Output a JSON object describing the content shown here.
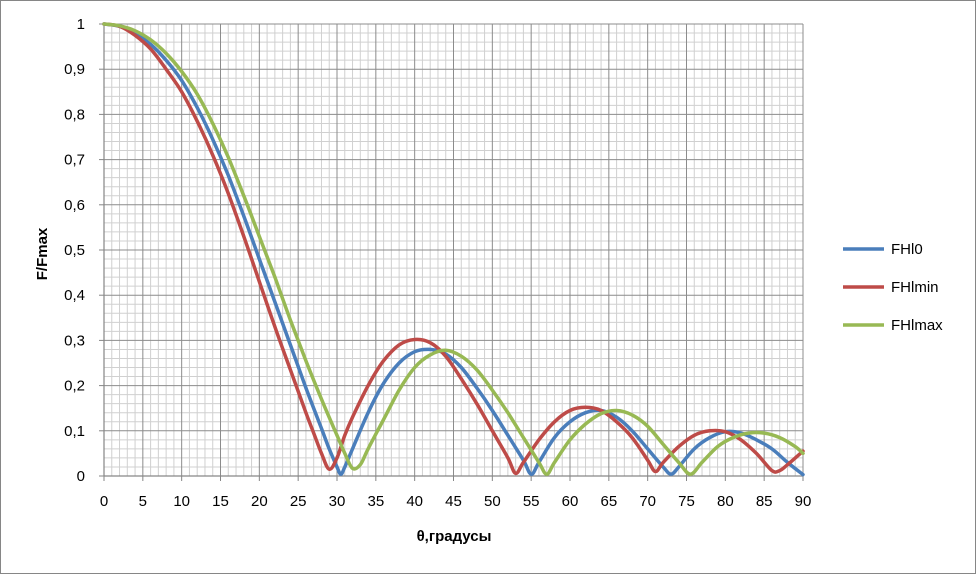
{
  "chart_data": {
    "type": "line",
    "title": "",
    "xlabel": "θ,градусы",
    "ylabel": "F/Fmax",
    "xlim": [
      0,
      90
    ],
    "ylim": [
      0,
      1
    ],
    "x_ticks": [
      0,
      5,
      10,
      15,
      20,
      25,
      30,
      35,
      40,
      45,
      50,
      55,
      60,
      65,
      70,
      75,
      80,
      85,
      90
    ],
    "y_ticks": [
      0,
      0.1,
      0.2,
      0.3,
      0.4,
      0.5,
      0.6,
      0.7,
      0.8,
      0.9,
      1
    ],
    "y_tick_labels": [
      "0",
      "0,1",
      "0,2",
      "0,3",
      "0,4",
      "0,5",
      "0,6",
      "0,7",
      "0,8",
      "0,9",
      "1"
    ],
    "grid": true,
    "legend_position": "right",
    "series": [
      {
        "name": "FHl0",
        "color": "#4a7ebb",
        "points": [
          [
            0,
            1
          ],
          [
            2,
            0.995
          ],
          [
            4,
            0.98
          ],
          [
            6,
            0.955
          ],
          [
            8,
            0.92
          ],
          [
            10,
            0.875
          ],
          [
            12,
            0.815
          ],
          [
            14,
            0.745
          ],
          [
            16,
            0.665
          ],
          [
            18,
            0.575
          ],
          [
            20,
            0.48
          ],
          [
            22,
            0.385
          ],
          [
            24,
            0.29
          ],
          [
            26,
            0.195
          ],
          [
            28,
            0.105
          ],
          [
            29,
            0.06
          ],
          [
            30,
            0.02
          ],
          [
            30.5,
            0.004
          ],
          [
            31,
            0.02
          ],
          [
            32,
            0.06
          ],
          [
            34,
            0.14
          ],
          [
            36,
            0.205
          ],
          [
            38,
            0.25
          ],
          [
            40,
            0.275
          ],
          [
            42,
            0.28
          ],
          [
            44,
            0.27
          ],
          [
            46,
            0.24
          ],
          [
            48,
            0.195
          ],
          [
            50,
            0.145
          ],
          [
            52,
            0.09
          ],
          [
            54,
            0.035
          ],
          [
            55,
            0.004
          ],
          [
            56,
            0.03
          ],
          [
            58,
            0.085
          ],
          [
            60,
            0.12
          ],
          [
            62,
            0.14
          ],
          [
            64,
            0.145
          ],
          [
            66,
            0.13
          ],
          [
            68,
            0.1
          ],
          [
            70,
            0.06
          ],
          [
            72,
            0.02
          ],
          [
            73,
            0.004
          ],
          [
            74,
            0.02
          ],
          [
            76,
            0.06
          ],
          [
            78,
            0.085
          ],
          [
            80,
            0.098
          ],
          [
            82,
            0.095
          ],
          [
            84,
            0.08
          ],
          [
            86,
            0.06
          ],
          [
            88,
            0.03
          ],
          [
            90,
            0.003
          ]
        ]
      },
      {
        "name": "FHlmin",
        "color": "#be4b48",
        "points": [
          [
            0,
            1
          ],
          [
            2,
            0.995
          ],
          [
            4,
            0.975
          ],
          [
            6,
            0.945
          ],
          [
            8,
            0.9
          ],
          [
            10,
            0.85
          ],
          [
            12,
            0.785
          ],
          [
            14,
            0.71
          ],
          [
            16,
            0.625
          ],
          [
            18,
            0.53
          ],
          [
            20,
            0.43
          ],
          [
            22,
            0.33
          ],
          [
            24,
            0.235
          ],
          [
            26,
            0.14
          ],
          [
            27,
            0.095
          ],
          [
            28,
            0.05
          ],
          [
            29,
            0.015
          ],
          [
            30,
            0.04
          ],
          [
            31,
            0.09
          ],
          [
            32,
            0.13
          ],
          [
            34,
            0.2
          ],
          [
            36,
            0.255
          ],
          [
            38,
            0.29
          ],
          [
            40,
            0.302
          ],
          [
            42,
            0.295
          ],
          [
            44,
            0.265
          ],
          [
            46,
            0.215
          ],
          [
            48,
            0.16
          ],
          [
            50,
            0.1
          ],
          [
            52,
            0.04
          ],
          [
            53,
            0.006
          ],
          [
            54,
            0.03
          ],
          [
            56,
            0.08
          ],
          [
            58,
            0.12
          ],
          [
            60,
            0.145
          ],
          [
            62,
            0.152
          ],
          [
            64,
            0.145
          ],
          [
            66,
            0.12
          ],
          [
            68,
            0.085
          ],
          [
            70,
            0.035
          ],
          [
            71,
            0.01
          ],
          [
            72,
            0.03
          ],
          [
            74,
            0.065
          ],
          [
            76,
            0.09
          ],
          [
            78,
            0.1
          ],
          [
            80,
            0.098
          ],
          [
            82,
            0.08
          ],
          [
            84,
            0.05
          ],
          [
            86,
            0.012
          ],
          [
            87,
            0.012
          ],
          [
            88,
            0.025
          ],
          [
            90,
            0.055
          ]
        ]
      },
      {
        "name": "FHlmax",
        "color": "#98b954",
        "points": [
          [
            0,
            1
          ],
          [
            2,
            0.996
          ],
          [
            4,
            0.985
          ],
          [
            6,
            0.965
          ],
          [
            8,
            0.935
          ],
          [
            10,
            0.895
          ],
          [
            12,
            0.845
          ],
          [
            14,
            0.78
          ],
          [
            16,
            0.705
          ],
          [
            18,
            0.62
          ],
          [
            20,
            0.53
          ],
          [
            22,
            0.44
          ],
          [
            24,
            0.345
          ],
          [
            26,
            0.255
          ],
          [
            28,
            0.17
          ],
          [
            30,
            0.09
          ],
          [
            31,
            0.05
          ],
          [
            32,
            0.017
          ],
          [
            33,
            0.025
          ],
          [
            34,
            0.06
          ],
          [
            36,
            0.125
          ],
          [
            38,
            0.19
          ],
          [
            40,
            0.24
          ],
          [
            42,
            0.268
          ],
          [
            44,
            0.278
          ],
          [
            46,
            0.265
          ],
          [
            48,
            0.235
          ],
          [
            50,
            0.19
          ],
          [
            52,
            0.14
          ],
          [
            54,
            0.085
          ],
          [
            56,
            0.03
          ],
          [
            57,
            0.004
          ],
          [
            58,
            0.03
          ],
          [
            60,
            0.08
          ],
          [
            62,
            0.115
          ],
          [
            64,
            0.138
          ],
          [
            66,
            0.145
          ],
          [
            68,
            0.135
          ],
          [
            70,
            0.11
          ],
          [
            72,
            0.07
          ],
          [
            74,
            0.03
          ],
          [
            75.5,
            0.004
          ],
          [
            77,
            0.03
          ],
          [
            79,
            0.065
          ],
          [
            81,
            0.085
          ],
          [
            83,
            0.095
          ],
          [
            85,
            0.095
          ],
          [
            87,
            0.085
          ],
          [
            89,
            0.065
          ],
          [
            90,
            0.05
          ]
        ]
      }
    ]
  }
}
